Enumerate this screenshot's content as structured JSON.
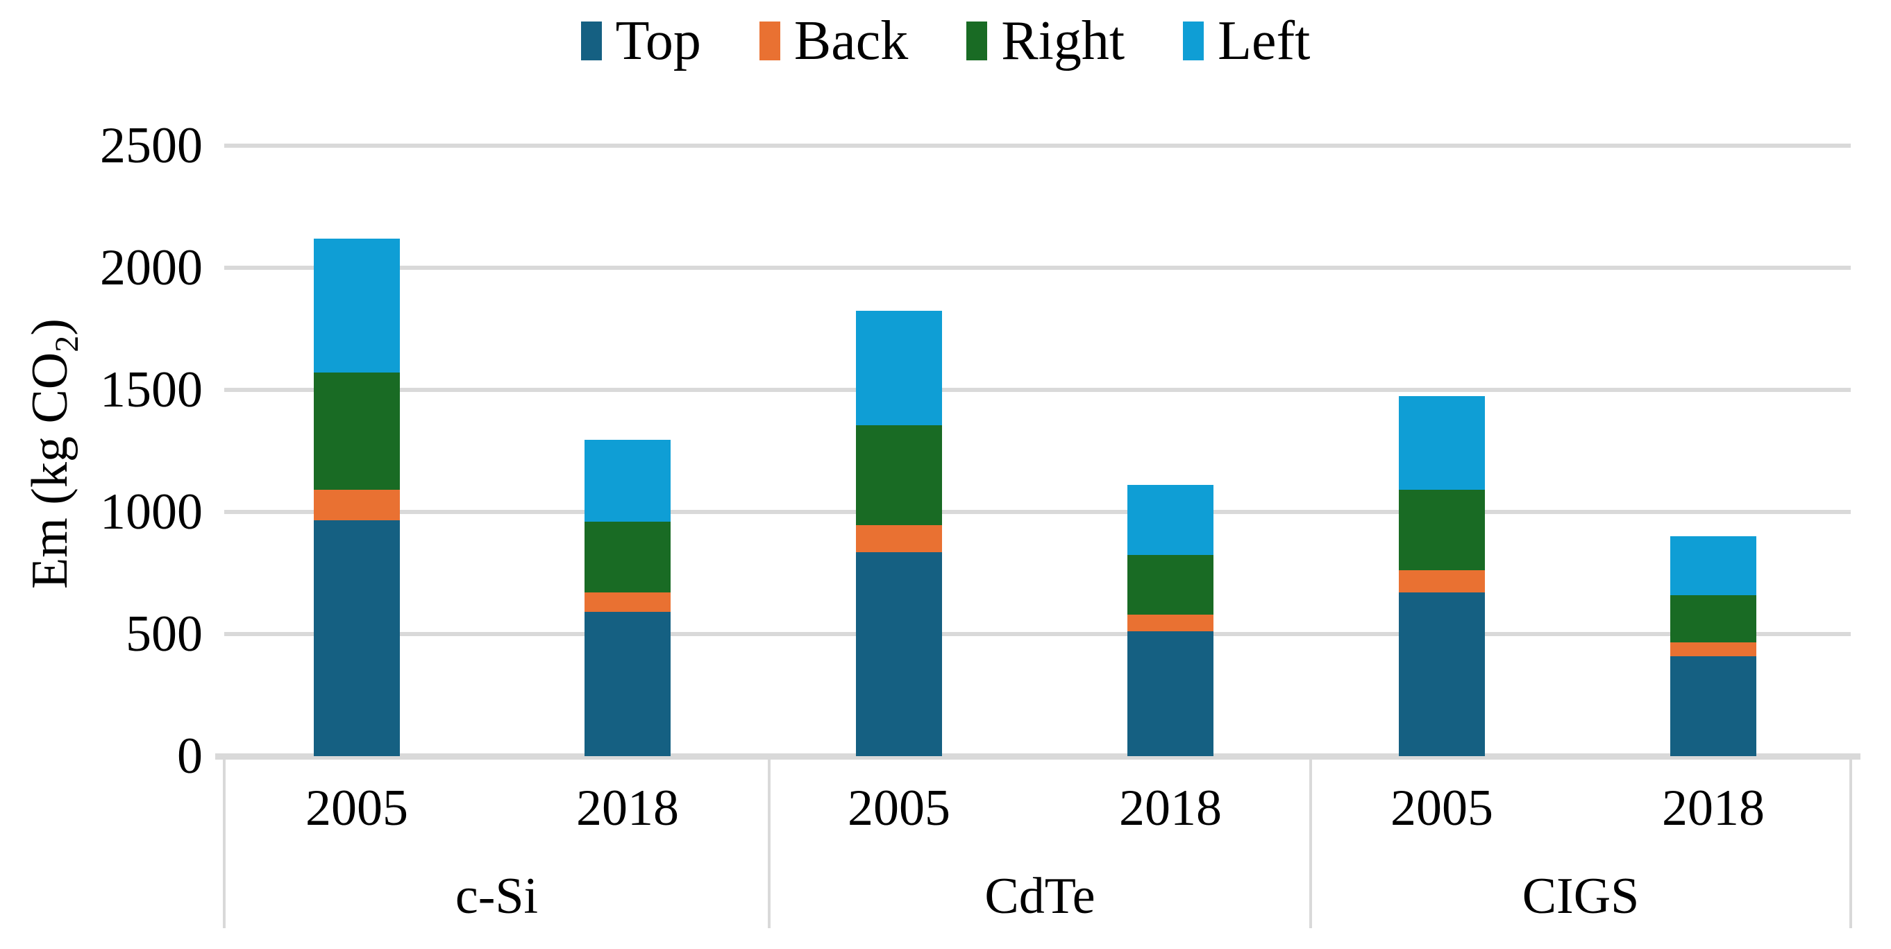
{
  "chart_data": {
    "type": "bar",
    "stacked": true,
    "title": "",
    "ylabel": "Em (kg CO2)",
    "ylabel_parts": {
      "prefix": "Em (kg CO",
      "sub": "2",
      "suffix": ")"
    },
    "ylim": [
      0,
      2500
    ],
    "yticks": [
      0,
      500,
      1000,
      1500,
      2000,
      2500
    ],
    "ytick_labels": [
      "0",
      "500",
      "1000",
      "1500",
      "2000",
      "2500"
    ],
    "grid": true,
    "legend_position": "top",
    "groups": [
      "c-Si",
      "CdTe",
      "CIGS"
    ],
    "bar_labels": [
      "2005",
      "2018",
      "2005",
      "2018",
      "2005",
      "2018"
    ],
    "series": [
      {
        "name": "Top",
        "color": "#156082",
        "values": [
          965,
          590,
          835,
          510,
          670,
          410
        ]
      },
      {
        "name": "Back",
        "color": "#E97132",
        "values": [
          125,
          80,
          110,
          70,
          90,
          55
        ]
      },
      {
        "name": "Right",
        "color": "#196B24",
        "values": [
          480,
          290,
          410,
          245,
          330,
          195
        ]
      },
      {
        "name": "Left",
        "color": "#0F9ED5",
        "values": [
          550,
          335,
          470,
          285,
          385,
          240
        ]
      }
    ],
    "totals": [
      2120,
      1295,
      1825,
      1110,
      1475,
      900
    ],
    "gridline_color": "#D9D9D9",
    "axis_line_color": "#D9D9D9",
    "separator_color": "#D9D9D9",
    "text_color": "#000000",
    "background": "#FFFFFF"
  }
}
